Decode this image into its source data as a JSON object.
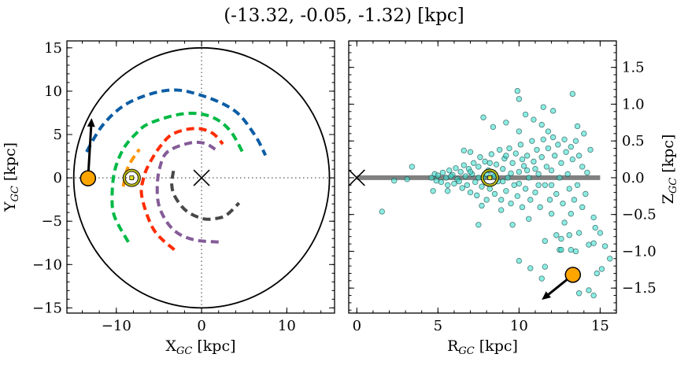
{
  "title": "(-13.32, -0.05, -1.32) [kpc]",
  "chart_data": [
    {
      "type": "line",
      "panel": "left",
      "xlabel": {
        "main": "X",
        "sub": "GC",
        "unit": " [kpc]"
      },
      "ylabel": {
        "main": "Y",
        "sub": "GC",
        "unit": " [kpc]"
      },
      "xlim": [
        -15.8,
        15.6
      ],
      "ylim": [
        -15.6,
        15.8
      ],
      "xticks": [
        {
          "v": -10,
          "label": "−10"
        },
        {
          "v": 0,
          "label": "0"
        },
        {
          "v": 10,
          "label": "10"
        }
      ],
      "yticks": [
        {
          "v": 15,
          "label": "15"
        },
        {
          "v": 10,
          "label": "10"
        },
        {
          "v": 5,
          "label": "5"
        },
        {
          "v": 0,
          "label": "0"
        },
        {
          "v": -5,
          "label": "−5"
        },
        {
          "v": -10,
          "label": "−10"
        },
        {
          "v": -15,
          "label": "−15"
        }
      ],
      "x_minor_step": 2,
      "y_minor_step": 1,
      "boundary_circle_radius": 15,
      "galactic_center": [
        0,
        0
      ],
      "sun": [
        -8.2,
        0
      ],
      "object": [
        -13.32,
        -0.05
      ],
      "velocity_arrow_tip": [
        -12.9,
        6.9
      ],
      "spiral_arms": [
        {
          "color": "#0c5da5",
          "points": [
            [
              -13.5,
              3.0
            ],
            [
              -11.5,
              6.2
            ],
            [
              -8.5,
              8.7
            ],
            [
              -4,
              10.1
            ],
            [
              -0.3,
              9.6
            ],
            [
              3.8,
              7.8
            ],
            [
              6.2,
              5.0
            ],
            [
              7.5,
              2.6
            ]
          ]
        },
        {
          "color": "#00b945",
          "points": [
            [
              -8.6,
              -7.4
            ],
            [
              -10.2,
              -4.5
            ],
            [
              -10.5,
              -2.2
            ],
            [
              -10.2,
              0.8
            ],
            [
              -9.2,
              3.3
            ],
            [
              -7.8,
              5.0
            ],
            [
              -6.1,
              6.3
            ],
            [
              -2.1,
              7.4
            ],
            [
              1,
              7.1
            ],
            [
              3.3,
              5.5
            ],
            [
              5,
              2.6
            ]
          ]
        },
        {
          "color": "#ff9500",
          "points": [
            [
              -9.2,
              -1.0
            ],
            [
              -8.6,
              1.3
            ],
            [
              -7.3,
              3.3
            ]
          ]
        },
        {
          "color": "#ff2c00",
          "points": [
            [
              -3.2,
              -8.3
            ],
            [
              -5.6,
              -6.0
            ],
            [
              -7,
              -2.2
            ],
            [
              -6.8,
              0
            ],
            [
              -6.1,
              1.7
            ],
            [
              -4.8,
              3.7
            ],
            [
              -3.3,
              5.1
            ],
            [
              -0.8,
              5.7
            ],
            [
              1.2,
              5.2
            ],
            [
              2.5,
              3.9
            ]
          ]
        },
        {
          "color": "#845b97",
          "points": [
            [
              2,
              -7.4
            ],
            [
              -0.6,
              -7.2
            ],
            [
              -2.6,
              -6.5
            ],
            [
              -4,
              -5.2
            ],
            [
              -5,
              -3.2
            ],
            [
              -5.2,
              -1
            ],
            [
              -4.9,
              1.2
            ],
            [
              -4,
              3
            ],
            [
              -1.5,
              4
            ],
            [
              0.3,
              4
            ],
            [
              1.6,
              3.3
            ]
          ]
        },
        {
          "color": "#474747",
          "points": [
            [
              -3.3,
              0.8
            ],
            [
              -3.5,
              -0.8
            ],
            [
              -3.1,
              -2.2
            ],
            [
              -1.8,
              -3.8
            ],
            [
              0.1,
              -4.7
            ],
            [
              1.6,
              -4.7
            ],
            [
              2.9,
              -4.3
            ],
            [
              4.4,
              -2.9
            ]
          ]
        }
      ]
    },
    {
      "type": "scatter",
      "panel": "right",
      "xlabel": {
        "main": "R",
        "sub": "GC",
        "unit": " [kpc]"
      },
      "ylabel": {
        "main": "Z",
        "sub": "GC",
        "unit": " [kpc]"
      },
      "xlim": [
        -0.5,
        16
      ],
      "ylim": [
        -1.84,
        1.86
      ],
      "xticks": [
        {
          "v": 0,
          "label": "0"
        },
        {
          "v": 5,
          "label": "5"
        },
        {
          "v": 10,
          "label": "10"
        },
        {
          "v": 15,
          "label": "15"
        }
      ],
      "yticks": [
        {
          "v": 1.5,
          "label": "1.5"
        },
        {
          "v": 1.0,
          "label": "1.0"
        },
        {
          "v": 0.5,
          "label": "0.5"
        },
        {
          "v": 0,
          "label": "0.0"
        },
        {
          "v": -0.5,
          "label": "−0.5"
        },
        {
          "v": -1.0,
          "label": "−1.0"
        },
        {
          "v": -1.5,
          "label": "−1.5"
        }
      ],
      "x_minor_step": 1,
      "y_minor_step": 0.1,
      "point_color": "#40e0d0",
      "disk_line": {
        "z": 0,
        "r_range": [
          0,
          15
        ],
        "color": "#808080"
      },
      "galactic_center": [
        0,
        0
      ],
      "sun": [
        8.2,
        0
      ],
      "object": [
        13.32,
        -1.32
      ],
      "velocity_arrow_tip": [
        11.4,
        -1.66
      ],
      "points": [
        [
          1.55,
          -0.46
        ],
        [
          2.3,
          -0.04
        ],
        [
          3.1,
          -0.02
        ],
        [
          3.4,
          0.15
        ],
        [
          7.8,
          0.82
        ],
        [
          8.4,
          0.69
        ],
        [
          9.9,
          1.18
        ],
        [
          10.0,
          1.07
        ],
        [
          13.3,
          1.14
        ],
        [
          11.5,
          0.96
        ],
        [
          12.1,
          0.91
        ],
        [
          10.4,
          0.86
        ],
        [
          10.9,
          0.79
        ],
        [
          9.2,
          0.75
        ],
        [
          13.6,
          0.7
        ],
        [
          14.0,
          0.6
        ],
        [
          14.4,
          0.38
        ],
        [
          14.2,
          0.07
        ],
        [
          13.6,
          -0.1
        ],
        [
          14.1,
          -0.22
        ],
        [
          13.9,
          -0.4
        ],
        [
          14.6,
          -0.54
        ],
        [
          14.7,
          -0.68
        ],
        [
          15.0,
          -0.75
        ],
        [
          13.7,
          -0.75
        ],
        [
          13.1,
          -0.78
        ],
        [
          12.3,
          -0.78
        ],
        [
          12.6,
          -0.83
        ],
        [
          11.6,
          -0.86
        ],
        [
          14.3,
          -0.91
        ],
        [
          14.6,
          -0.89
        ],
        [
          15.3,
          -0.93
        ],
        [
          12.5,
          -0.98
        ],
        [
          12.6,
          -0.98
        ],
        [
          13.2,
          -0.98
        ],
        [
          13.5,
          -1.0
        ],
        [
          15.6,
          -1.1
        ],
        [
          10.0,
          -1.13
        ],
        [
          10.7,
          -1.23
        ],
        [
          11.6,
          -1.21
        ],
        [
          15.1,
          -1.24
        ],
        [
          14.8,
          -1.3
        ],
        [
          11.4,
          -1.37
        ],
        [
          13.7,
          -1.57
        ],
        [
          14.3,
          -1.53
        ],
        [
          14.6,
          -1.6
        ],
        [
          7.5,
          -0.64
        ],
        [
          9.6,
          -0.64
        ],
        [
          4.7,
          -0.18
        ],
        [
          5.6,
          -0.18
        ],
        [
          6.6,
          0.37
        ],
        [
          7.0,
          0.35
        ],
        [
          7.7,
          -0.38
        ],
        [
          8.9,
          -0.44
        ],
        [
          10.6,
          -0.56
        ],
        [
          12.0,
          -0.49
        ],
        [
          13.2,
          -0.49
        ],
        [
          12.8,
          -0.61
        ],
        [
          10.0,
          0.63
        ],
        [
          11.4,
          0.72
        ],
        [
          11.8,
          0.63
        ],
        [
          4.6,
          0.0
        ],
        [
          4.8,
          0.05
        ],
        [
          4.9,
          -0.04
        ],
        [
          5.0,
          0.03
        ],
        [
          5.2,
          -0.06
        ],
        [
          5.3,
          0.07
        ],
        [
          5.5,
          0.0
        ],
        [
          5.6,
          -0.1
        ],
        [
          5.7,
          0.1
        ],
        [
          5.9,
          0.04
        ],
        [
          6.0,
          -0.08
        ],
        [
          6.1,
          0.13
        ],
        [
          6.2,
          -0.02
        ],
        [
          6.4,
          0.08
        ],
        [
          6.5,
          -0.14
        ],
        [
          6.6,
          0.17
        ],
        [
          6.7,
          0.02
        ],
        [
          6.8,
          -0.1
        ],
        [
          6.9,
          0.12
        ],
        [
          7.0,
          -0.2
        ],
        [
          7.1,
          0.05
        ],
        [
          7.2,
          0.2
        ],
        [
          7.3,
          -0.06
        ],
        [
          7.4,
          -0.24
        ],
        [
          7.5,
          0.15
        ],
        [
          7.6,
          0.28
        ],
        [
          7.7,
          -0.12
        ],
        [
          7.8,
          0.0
        ],
        [
          7.9,
          0.22
        ],
        [
          8.0,
          -0.3
        ],
        [
          8.1,
          0.1
        ],
        [
          8.2,
          -0.15
        ],
        [
          8.3,
          0.32
        ],
        [
          8.4,
          0.05
        ],
        [
          8.5,
          -0.22
        ],
        [
          8.6,
          0.18
        ],
        [
          8.7,
          -0.05
        ],
        [
          8.8,
          0.38
        ],
        [
          8.9,
          -0.3
        ],
        [
          9.0,
          0.12
        ],
        [
          9.1,
          0.26
        ],
        [
          9.2,
          -0.18
        ],
        [
          9.3,
          0.0
        ],
        [
          9.4,
          0.4
        ],
        [
          9.5,
          -0.35
        ],
        [
          9.6,
          0.2
        ],
        [
          9.7,
          -0.1
        ],
        [
          9.8,
          0.33
        ],
        [
          9.9,
          -0.25
        ],
        [
          10.0,
          0.08
        ],
        [
          10.1,
          0.45
        ],
        [
          10.2,
          -0.4
        ],
        [
          10.3,
          0.16
        ],
        [
          10.4,
          -0.15
        ],
        [
          10.5,
          0.3
        ],
        [
          10.6,
          0.0
        ],
        [
          10.7,
          -0.3
        ],
        [
          10.8,
          0.5
        ],
        [
          10.9,
          0.22
        ],
        [
          11.0,
          -0.2
        ],
        [
          11.1,
          0.38
        ],
        [
          11.2,
          0.05
        ],
        [
          11.3,
          -0.4
        ],
        [
          11.4,
          0.28
        ],
        [
          11.5,
          0.52
        ],
        [
          11.6,
          -0.1
        ],
        [
          11.7,
          0.15
        ],
        [
          11.8,
          0.4
        ],
        [
          11.9,
          -0.3
        ],
        [
          12.0,
          0.1
        ],
        [
          12.1,
          0.55
        ],
        [
          12.2,
          0.3
        ],
        [
          12.3,
          -0.22
        ],
        [
          12.4,
          0.45
        ],
        [
          12.5,
          0.0
        ],
        [
          12.6,
          0.2
        ],
        [
          12.7,
          -0.35
        ],
        [
          12.8,
          0.52
        ],
        [
          12.9,
          0.35
        ],
        [
          13.0,
          0.05
        ],
        [
          13.1,
          -0.15
        ],
        [
          13.2,
          0.42
        ],
        [
          13.3,
          0.25
        ],
        [
          13.5,
          0.5
        ],
        [
          13.4,
          -0.3
        ],
        [
          13.7,
          0.3
        ],
        [
          13.9,
          0.15
        ],
        [
          7.5,
          0.0
        ],
        [
          8.0,
          0.05
        ],
        [
          8.5,
          0.02
        ],
        [
          9.0,
          -0.05
        ],
        [
          9.5,
          0.06
        ],
        [
          10.0,
          -0.08
        ],
        [
          10.5,
          0.1
        ],
        [
          11.0,
          0.12
        ],
        [
          6.3,
          -0.05
        ],
        [
          5.8,
          0.02
        ],
        [
          8.2,
          0.2
        ],
        [
          9.2,
          0.3
        ],
        [
          10.2,
          0.25
        ],
        [
          11.2,
          -0.1
        ],
        [
          12.0,
          -0.1
        ],
        [
          7.0,
          0.08
        ]
      ]
    }
  ]
}
